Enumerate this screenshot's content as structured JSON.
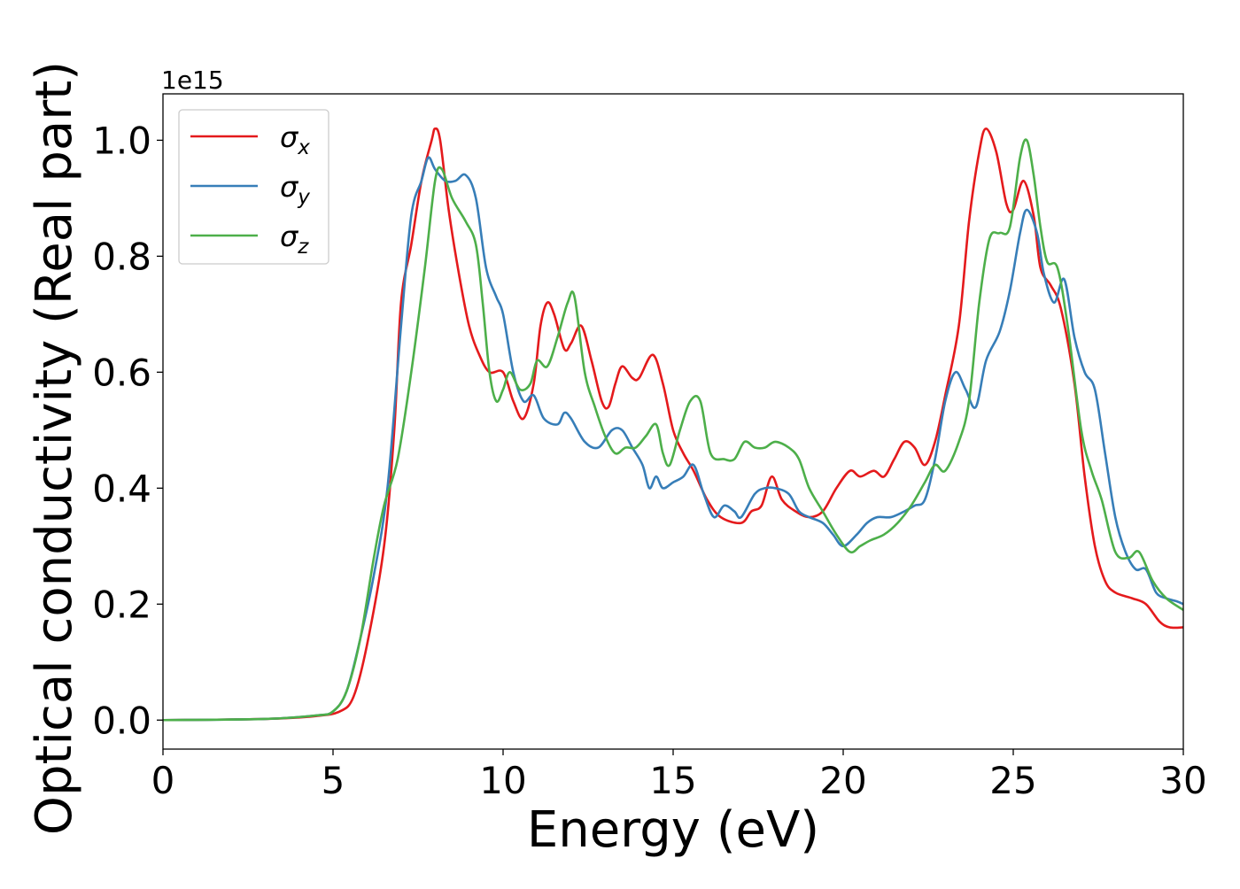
{
  "chart_data": {
    "type": "line",
    "xlabel": "Energy (eV)",
    "ylabel": "Optical conductivity (Real part)",
    "offset_text": "1e15",
    "xlim": [
      0,
      30
    ],
    "ylim": [
      -0.05,
      1.08
    ],
    "xticks": [
      0,
      5,
      10,
      15,
      20,
      25,
      30
    ],
    "xtick_labels": [
      "0",
      "5",
      "10",
      "15",
      "20",
      "25",
      "30"
    ],
    "yticks": [
      0.0,
      0.2,
      0.4,
      0.6,
      0.8,
      1.0
    ],
    "ytick_labels": [
      "0.0",
      "0.2",
      "0.4",
      "0.6",
      "0.8",
      "1.0"
    ],
    "grid": false,
    "legend_position": "top-left",
    "series": [
      {
        "name": "σ",
        "subscript": "x",
        "color": "#e41a1c",
        "points": [
          [
            0,
            0
          ],
          [
            3,
            0.002
          ],
          [
            4.5,
            0.007
          ],
          [
            5.2,
            0.015
          ],
          [
            5.6,
            0.04
          ],
          [
            6.0,
            0.13
          ],
          [
            6.5,
            0.3
          ],
          [
            6.8,
            0.5
          ],
          [
            7.0,
            0.72
          ],
          [
            7.3,
            0.82
          ],
          [
            7.6,
            0.93
          ],
          [
            7.9,
            1.0
          ],
          [
            8.0,
            1.02
          ],
          [
            8.15,
            1.0
          ],
          [
            8.4,
            0.88
          ],
          [
            8.7,
            0.77
          ],
          [
            9.0,
            0.68
          ],
          [
            9.3,
            0.63
          ],
          [
            9.6,
            0.6
          ],
          [
            10.0,
            0.6
          ],
          [
            10.3,
            0.55
          ],
          [
            10.6,
            0.52
          ],
          [
            10.9,
            0.58
          ],
          [
            11.1,
            0.68
          ],
          [
            11.3,
            0.72
          ],
          [
            11.5,
            0.7
          ],
          [
            11.8,
            0.64
          ],
          [
            12.0,
            0.65
          ],
          [
            12.3,
            0.68
          ],
          [
            12.6,
            0.62
          ],
          [
            12.9,
            0.55
          ],
          [
            13.1,
            0.54
          ],
          [
            13.3,
            0.58
          ],
          [
            13.5,
            0.61
          ],
          [
            13.8,
            0.59
          ],
          [
            14.0,
            0.59
          ],
          [
            14.4,
            0.63
          ],
          [
            14.7,
            0.58
          ],
          [
            15.0,
            0.5
          ],
          [
            15.3,
            0.46
          ],
          [
            15.6,
            0.43
          ],
          [
            16.0,
            0.38
          ],
          [
            16.4,
            0.35
          ],
          [
            17.0,
            0.34
          ],
          [
            17.3,
            0.36
          ],
          [
            17.6,
            0.37
          ],
          [
            17.9,
            0.42
          ],
          [
            18.2,
            0.38
          ],
          [
            18.6,
            0.36
          ],
          [
            19.0,
            0.35
          ],
          [
            19.4,
            0.36
          ],
          [
            19.8,
            0.4
          ],
          [
            20.2,
            0.43
          ],
          [
            20.5,
            0.42
          ],
          [
            20.9,
            0.43
          ],
          [
            21.2,
            0.42
          ],
          [
            21.5,
            0.45
          ],
          [
            21.8,
            0.48
          ],
          [
            22.1,
            0.47
          ],
          [
            22.4,
            0.44
          ],
          [
            22.7,
            0.48
          ],
          [
            23.0,
            0.56
          ],
          [
            23.4,
            0.68
          ],
          [
            23.7,
            0.86
          ],
          [
            24.0,
            0.98
          ],
          [
            24.2,
            1.02
          ],
          [
            24.5,
            0.98
          ],
          [
            24.8,
            0.89
          ],
          [
            25.0,
            0.88
          ],
          [
            25.3,
            0.93
          ],
          [
            25.6,
            0.87
          ],
          [
            25.8,
            0.78
          ],
          [
            26.1,
            0.75
          ],
          [
            26.4,
            0.71
          ],
          [
            26.8,
            0.58
          ],
          [
            27.1,
            0.42
          ],
          [
            27.4,
            0.3
          ],
          [
            27.7,
            0.24
          ],
          [
            28.0,
            0.22
          ],
          [
            28.5,
            0.21
          ],
          [
            28.9,
            0.2
          ],
          [
            29.3,
            0.17
          ],
          [
            29.6,
            0.16
          ],
          [
            30.0,
            0.16
          ]
        ]
      },
      {
        "name": "σ",
        "subscript": "y",
        "color": "#377eb8",
        "points": [
          [
            0,
            0
          ],
          [
            3,
            0.002
          ],
          [
            4.5,
            0.008
          ],
          [
            5.0,
            0.015
          ],
          [
            5.4,
            0.05
          ],
          [
            5.8,
            0.14
          ],
          [
            6.2,
            0.25
          ],
          [
            6.6,
            0.4
          ],
          [
            7.0,
            0.68
          ],
          [
            7.3,
            0.87
          ],
          [
            7.6,
            0.93
          ],
          [
            7.8,
            0.97
          ],
          [
            8.0,
            0.95
          ],
          [
            8.3,
            0.93
          ],
          [
            8.6,
            0.93
          ],
          [
            8.9,
            0.94
          ],
          [
            9.2,
            0.9
          ],
          [
            9.5,
            0.78
          ],
          [
            9.8,
            0.73
          ],
          [
            10.0,
            0.7
          ],
          [
            10.3,
            0.6
          ],
          [
            10.6,
            0.55
          ],
          [
            10.9,
            0.56
          ],
          [
            11.2,
            0.52
          ],
          [
            11.6,
            0.51
          ],
          [
            11.8,
            0.53
          ],
          [
            12.0,
            0.52
          ],
          [
            12.4,
            0.48
          ],
          [
            12.8,
            0.47
          ],
          [
            13.2,
            0.5
          ],
          [
            13.5,
            0.5
          ],
          [
            13.8,
            0.47
          ],
          [
            14.1,
            0.44
          ],
          [
            14.3,
            0.4
          ],
          [
            14.5,
            0.42
          ],
          [
            14.7,
            0.4
          ],
          [
            15.0,
            0.41
          ],
          [
            15.3,
            0.42
          ],
          [
            15.6,
            0.44
          ],
          [
            15.9,
            0.39
          ],
          [
            16.2,
            0.35
          ],
          [
            16.5,
            0.37
          ],
          [
            16.8,
            0.36
          ],
          [
            17.0,
            0.35
          ],
          [
            17.4,
            0.39
          ],
          [
            17.7,
            0.4
          ],
          [
            18.0,
            0.4
          ],
          [
            18.4,
            0.39
          ],
          [
            18.7,
            0.36
          ],
          [
            19.0,
            0.35
          ],
          [
            19.4,
            0.34
          ],
          [
            19.7,
            0.32
          ],
          [
            20.0,
            0.3
          ],
          [
            20.4,
            0.32
          ],
          [
            20.7,
            0.34
          ],
          [
            21.0,
            0.35
          ],
          [
            21.4,
            0.35
          ],
          [
            21.8,
            0.36
          ],
          [
            22.1,
            0.37
          ],
          [
            22.4,
            0.38
          ],
          [
            22.7,
            0.45
          ],
          [
            23.0,
            0.55
          ],
          [
            23.3,
            0.6
          ],
          [
            23.6,
            0.57
          ],
          [
            23.9,
            0.54
          ],
          [
            24.2,
            0.62
          ],
          [
            24.6,
            0.67
          ],
          [
            24.9,
            0.74
          ],
          [
            25.2,
            0.84
          ],
          [
            25.4,
            0.88
          ],
          [
            25.7,
            0.84
          ],
          [
            25.9,
            0.77
          ],
          [
            26.2,
            0.72
          ],
          [
            26.5,
            0.76
          ],
          [
            26.8,
            0.66
          ],
          [
            27.1,
            0.6
          ],
          [
            27.4,
            0.57
          ],
          [
            27.7,
            0.46
          ],
          [
            28.0,
            0.35
          ],
          [
            28.3,
            0.29
          ],
          [
            28.6,
            0.26
          ],
          [
            28.9,
            0.26
          ],
          [
            29.2,
            0.22
          ],
          [
            29.5,
            0.21
          ],
          [
            29.8,
            0.205
          ],
          [
            30.0,
            0.2
          ]
        ]
      },
      {
        "name": "σ",
        "subscript": "z",
        "color": "#4daf4a",
        "points": [
          [
            0,
            0
          ],
          [
            3,
            0.002
          ],
          [
            4.5,
            0.008
          ],
          [
            5.0,
            0.015
          ],
          [
            5.4,
            0.05
          ],
          [
            5.8,
            0.14
          ],
          [
            6.2,
            0.28
          ],
          [
            6.5,
            0.37
          ],
          [
            6.9,
            0.45
          ],
          [
            7.3,
            0.6
          ],
          [
            7.7,
            0.78
          ],
          [
            8.0,
            0.93
          ],
          [
            8.2,
            0.95
          ],
          [
            8.5,
            0.9
          ],
          [
            8.9,
            0.86
          ],
          [
            9.2,
            0.82
          ],
          [
            9.4,
            0.72
          ],
          [
            9.6,
            0.6
          ],
          [
            9.8,
            0.55
          ],
          [
            10.0,
            0.57
          ],
          [
            10.2,
            0.6
          ],
          [
            10.5,
            0.57
          ],
          [
            10.8,
            0.58
          ],
          [
            11.0,
            0.62
          ],
          [
            11.3,
            0.61
          ],
          [
            11.6,
            0.66
          ],
          [
            11.9,
            0.72
          ],
          [
            12.1,
            0.73
          ],
          [
            12.4,
            0.6
          ],
          [
            12.7,
            0.54
          ],
          [
            13.0,
            0.49
          ],
          [
            13.3,
            0.46
          ],
          [
            13.6,
            0.47
          ],
          [
            13.9,
            0.47
          ],
          [
            14.2,
            0.49
          ],
          [
            14.5,
            0.51
          ],
          [
            14.7,
            0.46
          ],
          [
            14.9,
            0.44
          ],
          [
            15.2,
            0.5
          ],
          [
            15.5,
            0.55
          ],
          [
            15.8,
            0.55
          ],
          [
            16.1,
            0.46
          ],
          [
            16.5,
            0.45
          ],
          [
            16.8,
            0.45
          ],
          [
            17.1,
            0.48
          ],
          [
            17.4,
            0.47
          ],
          [
            17.7,
            0.47
          ],
          [
            18.0,
            0.48
          ],
          [
            18.4,
            0.47
          ],
          [
            18.7,
            0.45
          ],
          [
            19.0,
            0.4
          ],
          [
            19.4,
            0.36
          ],
          [
            19.8,
            0.32
          ],
          [
            20.2,
            0.29
          ],
          [
            20.5,
            0.3
          ],
          [
            20.8,
            0.31
          ],
          [
            21.2,
            0.32
          ],
          [
            21.6,
            0.34
          ],
          [
            22.0,
            0.37
          ],
          [
            22.4,
            0.41
          ],
          [
            22.7,
            0.44
          ],
          [
            23.0,
            0.43
          ],
          [
            23.4,
            0.48
          ],
          [
            23.7,
            0.55
          ],
          [
            24.0,
            0.72
          ],
          [
            24.3,
            0.83
          ],
          [
            24.6,
            0.84
          ],
          [
            24.9,
            0.85
          ],
          [
            25.2,
            0.97
          ],
          [
            25.4,
            1.0
          ],
          [
            25.6,
            0.94
          ],
          [
            25.8,
            0.85
          ],
          [
            26.0,
            0.79
          ],
          [
            26.3,
            0.78
          ],
          [
            26.6,
            0.68
          ],
          [
            27.0,
            0.5
          ],
          [
            27.3,
            0.43
          ],
          [
            27.6,
            0.38
          ],
          [
            28.0,
            0.29
          ],
          [
            28.4,
            0.28
          ],
          [
            28.7,
            0.29
          ],
          [
            29.1,
            0.24
          ],
          [
            29.5,
            0.21
          ],
          [
            30.0,
            0.19
          ]
        ]
      }
    ]
  }
}
